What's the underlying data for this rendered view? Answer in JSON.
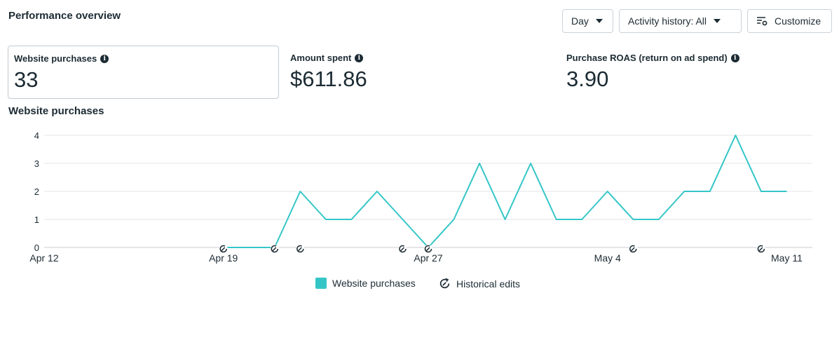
{
  "header": {
    "title": "Performance overview",
    "granularity_label": "Day",
    "activity_label": "Activity history: All",
    "customize_label": "Customize"
  },
  "kpis": [
    {
      "label": "Website purchases",
      "value": "33",
      "selected": true
    },
    {
      "label": "Amount spent",
      "value": "$611.86",
      "selected": false
    },
    {
      "label": "Purchase ROAS (return on ad spend)",
      "value": "3.90",
      "selected": false
    }
  ],
  "chart_title": "Website purchases",
  "legend": {
    "series_label": "Website purchases",
    "edits_label": "Historical edits"
  },
  "colors": {
    "series": "#34c6c7",
    "text": "#1c2b33",
    "grid": "#e4e6eb"
  },
  "chart_data": {
    "type": "line",
    "x": [
      "Apr 19",
      "Apr 20",
      "Apr 21",
      "Apr 22",
      "Apr 23",
      "Apr 24",
      "Apr 25",
      "Apr 26",
      "Apr 27",
      "Apr 28",
      "Apr 29",
      "Apr 30",
      "May 1",
      "May 2",
      "May 3",
      "May 4",
      "May 5",
      "May 6",
      "May 7",
      "May 8",
      "May 9",
      "May 10",
      "May 11"
    ],
    "series": [
      {
        "name": "Website purchases",
        "values": [
          0,
          0,
          0,
          2,
          1,
          1,
          2,
          1,
          0,
          1,
          3,
          1,
          3,
          1,
          1,
          2,
          1,
          1,
          2,
          2,
          4,
          2,
          2
        ]
      }
    ],
    "xticks": [
      "Apr 12",
      "Apr 19",
      "Apr 27",
      "May 4",
      "May 11"
    ],
    "yticks": [
      0,
      1,
      2,
      3,
      4
    ],
    "ylim": [
      0,
      4
    ],
    "historical_edit_dates": [
      "Apr 19",
      "Apr 21",
      "Apr 22",
      "Apr 26",
      "Apr 27",
      "May 5",
      "May 10"
    ],
    "grid": true,
    "legend_position": "bottom"
  }
}
